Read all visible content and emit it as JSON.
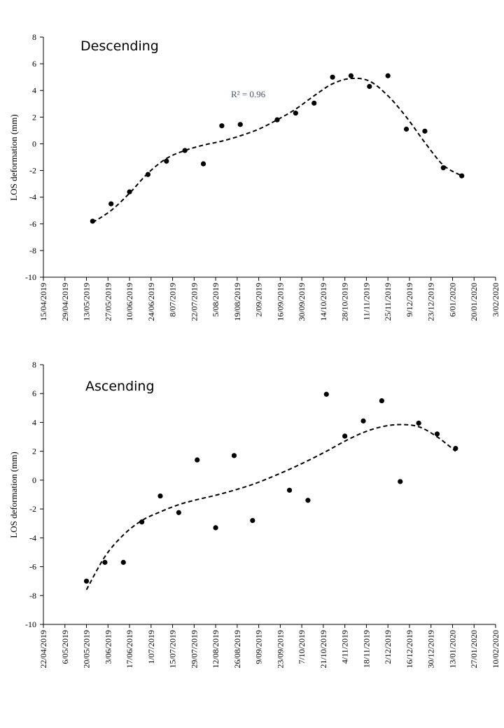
{
  "chart_data": [
    {
      "type": "scatter",
      "title": "Descending",
      "ylabel": "LOS deformation  (mm)",
      "xlabel": "",
      "ylim": [
        -10,
        8
      ],
      "yticks": [
        -10,
        -8,
        -6,
        -4,
        -2,
        0,
        2,
        4,
        6,
        8
      ],
      "xlim": [
        "2019-04-15",
        "2020-02-03"
      ],
      "xtick_labels": [
        "15/04/2019",
        "29/04/2019",
        "13/05/2019",
        "27/05/2019",
        "10/06/2019",
        "24/06/2019",
        "8/07/2019",
        "22/07/2019",
        "5/08/2019",
        "19/08/2019",
        "2/09/2019",
        "16/09/2019",
        "30/09/2019",
        "14/10/2019",
        "28/10/2019",
        "11/11/2019",
        "25/11/2019",
        "9/12/2019",
        "23/12/2019",
        "6/01/2020",
        "20/01/2020",
        "3/02/2020"
      ],
      "annotation": "R² = 0.96",
      "series": [
        {
          "x": [
            "2019-05-17",
            "2019-05-29",
            "2019-06-10",
            "2019-06-22",
            "2019-07-04",
            "2019-07-16",
            "2019-07-28",
            "2019-08-09",
            "2019-08-21",
            "2019-09-14",
            "2019-09-26",
            "2019-10-08",
            "2019-10-20",
            "2019-11-01",
            "2019-11-13",
            "2019-11-25",
            "2019-12-07",
            "2019-12-19",
            "2019-12-31",
            "2020-01-12"
          ],
          "y": [
            -5.8,
            -4.5,
            -3.6,
            -2.3,
            -1.3,
            -0.5,
            -1.5,
            1.35,
            1.45,
            1.8,
            2.3,
            3.05,
            5.0,
            5.1,
            4.3,
            5.1,
            1.1,
            0.95,
            -1.8,
            -2.4
          ]
        }
      ],
      "trendline": {
        "style": "dashed",
        "x": [
          "2019-05-17",
          "2019-05-29",
          "2019-06-10",
          "2019-06-22",
          "2019-07-04",
          "2019-07-16",
          "2019-07-28",
          "2019-08-09",
          "2019-08-21",
          "2019-09-02",
          "2019-09-14",
          "2019-09-26",
          "2019-10-08",
          "2019-10-20",
          "2019-11-01",
          "2019-11-13",
          "2019-11-25",
          "2019-12-07",
          "2019-12-19",
          "2019-12-31",
          "2020-01-12"
        ],
        "y": [
          -5.9,
          -5.0,
          -3.7,
          -2.2,
          -1.1,
          -0.5,
          -0.1,
          0.2,
          0.6,
          1.1,
          1.8,
          2.6,
          3.6,
          4.5,
          4.9,
          4.7,
          3.6,
          2.0,
          0.1,
          -1.6,
          -2.4
        ]
      }
    },
    {
      "type": "scatter",
      "title": "Ascending",
      "ylabel": "LOS deformation  (mm)",
      "xlabel": "",
      "ylim": [
        -10,
        8
      ],
      "yticks": [
        -10,
        -8,
        -6,
        -4,
        -2,
        0,
        2,
        4,
        6,
        8
      ],
      "xlim": [
        "2019-04-22",
        "2020-02-10"
      ],
      "xtick_labels": [
        "22/04/2019",
        "6/05/2019",
        "20/05/2019",
        "3/06/2019",
        "17/06/2019",
        "1/07/2019",
        "15/07/2019",
        "29/07/2019",
        "12/08/2019",
        "26/08/2019",
        "9/09/2019",
        "23/09/2019",
        "7/10/2019",
        "21/10/2019",
        "4/11/2019",
        "18/11/2019",
        "2/12/2019",
        "16/12/2019",
        "30/12/2019",
        "13/01/2020",
        "27/01/2020",
        "10/02/2020"
      ],
      "series": [
        {
          "x": [
            "2019-05-20",
            "2019-06-01",
            "2019-06-13",
            "2019-06-25",
            "2019-07-07",
            "2019-07-19",
            "2019-07-31",
            "2019-08-12",
            "2019-08-24",
            "2019-09-05",
            "2019-09-29",
            "2019-10-11",
            "2019-10-23",
            "2019-11-04",
            "2019-11-16",
            "2019-11-28",
            "2019-12-10",
            "2019-12-22",
            "2020-01-03",
            "2020-01-15"
          ],
          "y": [
            -7.0,
            -5.7,
            -5.7,
            -2.9,
            -1.1,
            -2.25,
            1.4,
            -3.3,
            1.7,
            -2.8,
            -0.7,
            -1.4,
            5.95,
            3.05,
            4.1,
            5.5,
            -0.1,
            3.95,
            3.2,
            2.2
          ]
        }
      ],
      "trendline": {
        "style": "dashed",
        "x": [
          "2019-05-20",
          "2019-06-01",
          "2019-06-13",
          "2019-06-25",
          "2019-07-07",
          "2019-07-19",
          "2019-07-31",
          "2019-08-12",
          "2019-08-24",
          "2019-09-05",
          "2019-09-17",
          "2019-09-29",
          "2019-10-11",
          "2019-10-23",
          "2019-11-04",
          "2019-11-16",
          "2019-11-28",
          "2019-12-10",
          "2019-12-22",
          "2020-01-03",
          "2020-01-15"
        ],
        "y": [
          -7.6,
          -5.3,
          -3.8,
          -2.8,
          -2.2,
          -1.7,
          -1.35,
          -1.05,
          -0.7,
          -0.3,
          0.2,
          0.75,
          1.35,
          2.0,
          2.7,
          3.3,
          3.7,
          3.85,
          3.7,
          3.0,
          2.0
        ]
      }
    }
  ]
}
